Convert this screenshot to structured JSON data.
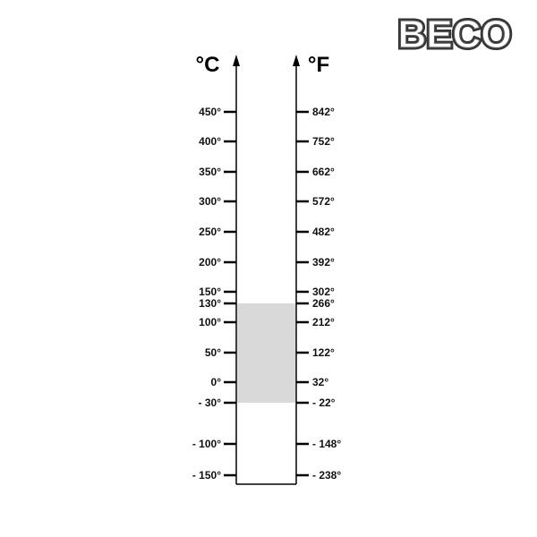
{
  "logo": {
    "text": "BECO"
  },
  "diagram": {
    "celsius_unit": "°C",
    "fahrenheit_unit": "°F",
    "celsius_ticks": [
      "450°",
      "400°",
      "350°",
      "300°",
      "250°",
      "200°",
      "150°",
      "130°",
      "100°",
      "50°",
      "0°",
      "-30°",
      "-100°",
      "-150°"
    ],
    "fahrenheit_ticks": [
      "842°",
      "752°",
      "662°",
      "572°",
      "482°",
      "392°",
      "302°",
      "266°",
      "212°",
      "122°",
      "32°",
      "-22°",
      "-148°",
      "-238°"
    ],
    "operating_range": {
      "min_c": -30,
      "max_c": 130,
      "min_f": -22,
      "max_f": 266,
      "color": "#d9d9d9"
    }
  }
}
